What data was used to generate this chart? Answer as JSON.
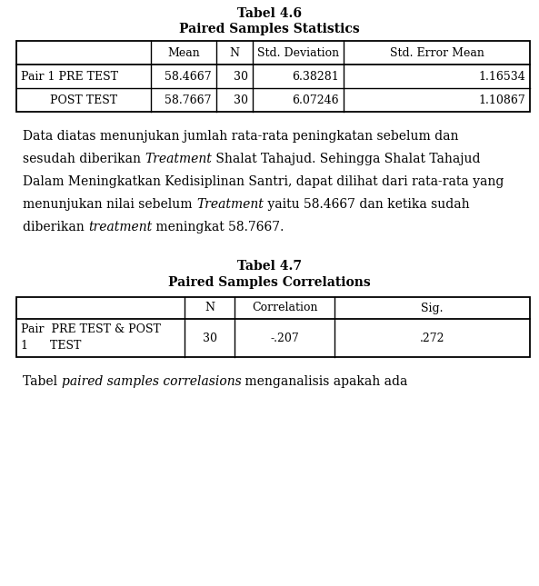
{
  "title1": "Tabel 4.6",
  "subtitle1": "Paired Samples Statistics",
  "t1_headers": [
    "",
    "Mean",
    "N",
    "Std. Deviation",
    "Std. Error Mean"
  ],
  "t1_row1": [
    "Pair 1 PRE TEST",
    "58.4667",
    "30",
    "6.38281",
    "1.16534"
  ],
  "t1_row2": [
    "POST TEST",
    "58.7667",
    "30",
    "6.07246",
    "1.10867"
  ],
  "title2": "Tabel 4.7",
  "subtitle2": "Paired Samples Correlations",
  "t2_headers": [
    "",
    "N",
    "Correlation",
    "Sig."
  ],
  "t2_row1_line1": "Pair  PRE TEST & POST",
  "t2_row1_line2": "1      TEST",
  "t2_row1_n": "30",
  "t2_row1_corr": "-.207",
  "t2_row1_sig": ".272",
  "footer_normal1": "Tabel ",
  "footer_italic": "paired samples correlasions",
  "footer_normal2": " menganalisis apakah ada",
  "bg_color": "#ffffff",
  "text_color": "#000000",
  "fontsize_title": 10,
  "fontsize_table": 9,
  "fontsize_para": 10,
  "fig_w": 5.93,
  "fig_h": 6.45,
  "dpi": 100
}
